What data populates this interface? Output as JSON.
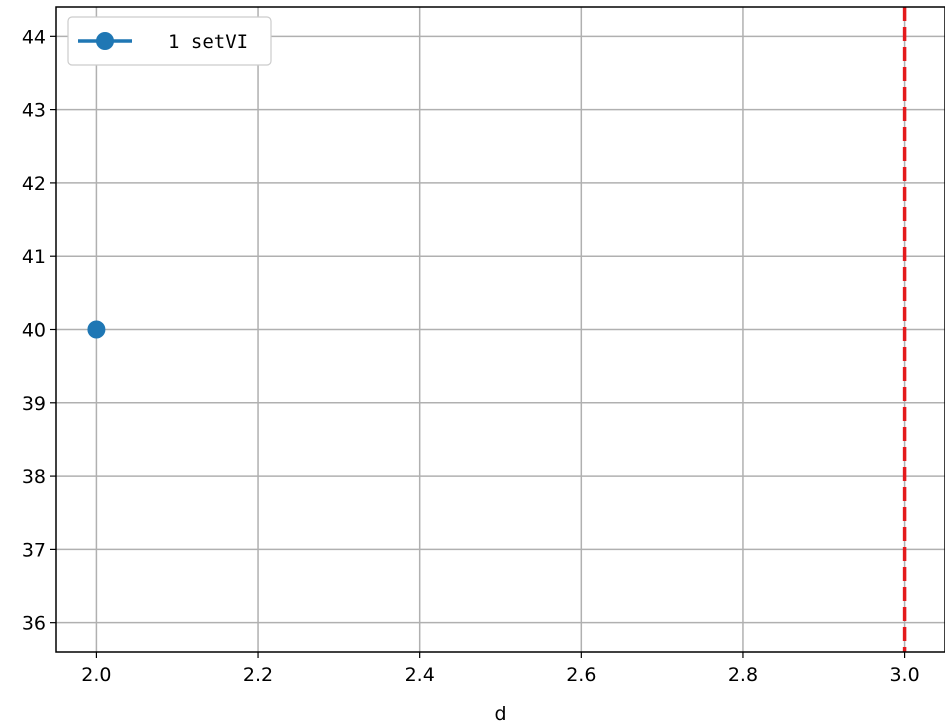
{
  "chart_data": {
    "type": "line",
    "title": "",
    "xlabel": "d",
    "ylabel": "",
    "xlim": [
      1.95,
      3.05
    ],
    "ylim": [
      35.6,
      44.4
    ],
    "xticks": [
      "2.0",
      "2.2",
      "2.4",
      "2.6",
      "2.8",
      "3.0"
    ],
    "xtick_values": [
      2.0,
      2.2,
      2.4,
      2.6,
      2.8,
      3.0
    ],
    "yticks": [
      "36",
      "37",
      "38",
      "39",
      "40",
      "41",
      "42",
      "43",
      "44"
    ],
    "ytick_values": [
      36,
      37,
      38,
      39,
      40,
      41,
      42,
      43,
      44
    ],
    "grid": true,
    "legend_position": "top-left",
    "series": [
      {
        "name": "1 setVI",
        "x": [
          2.0
        ],
        "y": [
          40
        ],
        "color": "#1f77b4",
        "marker": "circle"
      }
    ],
    "reference_lines": [
      {
        "orientation": "vertical",
        "x": 3.0,
        "color": "#e41a1c",
        "style": "dashed"
      }
    ]
  }
}
